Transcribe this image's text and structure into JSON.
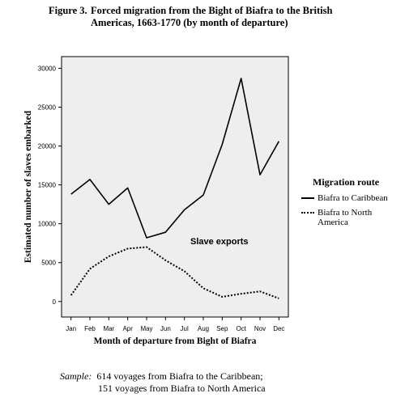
{
  "figure": {
    "number": "Figure 3.",
    "title_line1": "Forced migration from the Bight of Biafra to the British",
    "title_line2": "Americas, 1663-1770 (by month of departure)"
  },
  "chart_data": {
    "type": "line",
    "categories": [
      "Jan",
      "Feb",
      "Mar",
      "Apr",
      "May",
      "Jun",
      "Jul",
      "Aug",
      "Sep",
      "Oct",
      "Nov",
      "Dec"
    ],
    "series": [
      {
        "name": "Biafra to Caribbean",
        "style": "solid",
        "values": [
          13800,
          15700,
          12500,
          14600,
          8200,
          8900,
          11800,
          13700,
          20200,
          28700,
          16300,
          20600
        ]
      },
      {
        "name": "Biafra to North America",
        "style": "dotted",
        "values": [
          800,
          4200,
          5800,
          6800,
          7000,
          5300,
          3900,
          1700,
          600,
          1000,
          1300,
          400
        ]
      }
    ],
    "xlabel": "Month of departure from Bight of Biafra",
    "ylabel": "Estimated number of slaves embarked",
    "yticks": [
      0,
      5000,
      10000,
      15000,
      20000,
      25000,
      30000
    ],
    "ylim": [
      -2000,
      31500
    ],
    "annotation": "Slave exports",
    "legend_title": "Migration route",
    "legend_position": "right",
    "background": "#eeeeee",
    "grid": false
  },
  "sample": {
    "label": "Sample:",
    "line1": "614 voyages from Biafra to the Caribbean;",
    "line2": "151 voyages from Biafra to North America"
  }
}
